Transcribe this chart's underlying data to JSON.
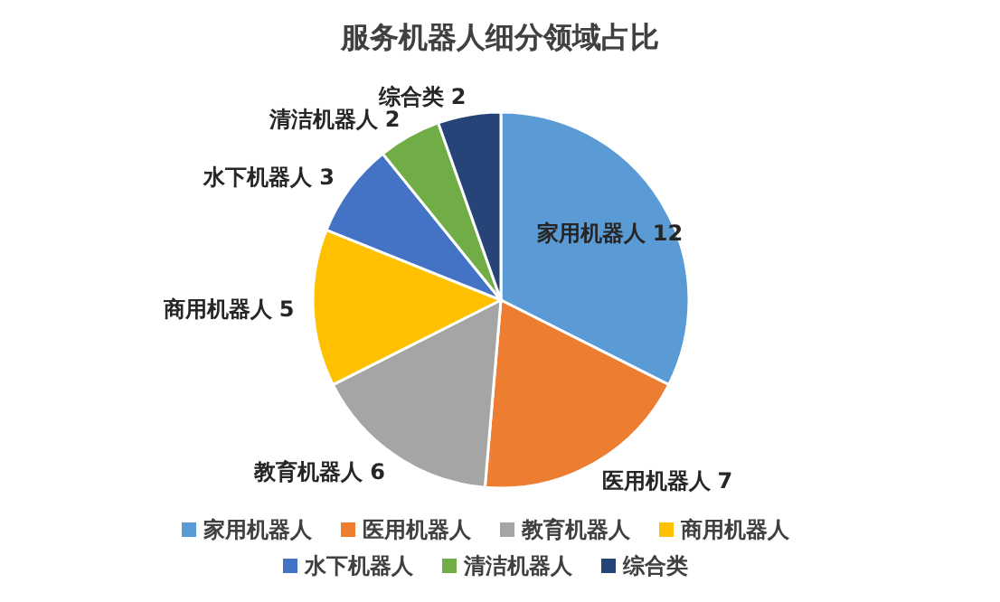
{
  "chart_data": {
    "type": "pie",
    "title": "服务机器人细分领域占比",
    "categories": [
      "家用机器人",
      "医用机器人",
      "教育机器人",
      "商用机器人",
      "水下机器人",
      "清洁机器人",
      "综合类"
    ],
    "values": [
      12,
      7,
      6,
      5,
      3,
      2,
      2
    ],
    "colors": [
      "#5b9bd5",
      "#ed7d31",
      "#a5a5a5",
      "#ffc000",
      "#4472c4",
      "#70ad47",
      "#264478"
    ],
    "data_labels": true,
    "legend": "bottom"
  }
}
